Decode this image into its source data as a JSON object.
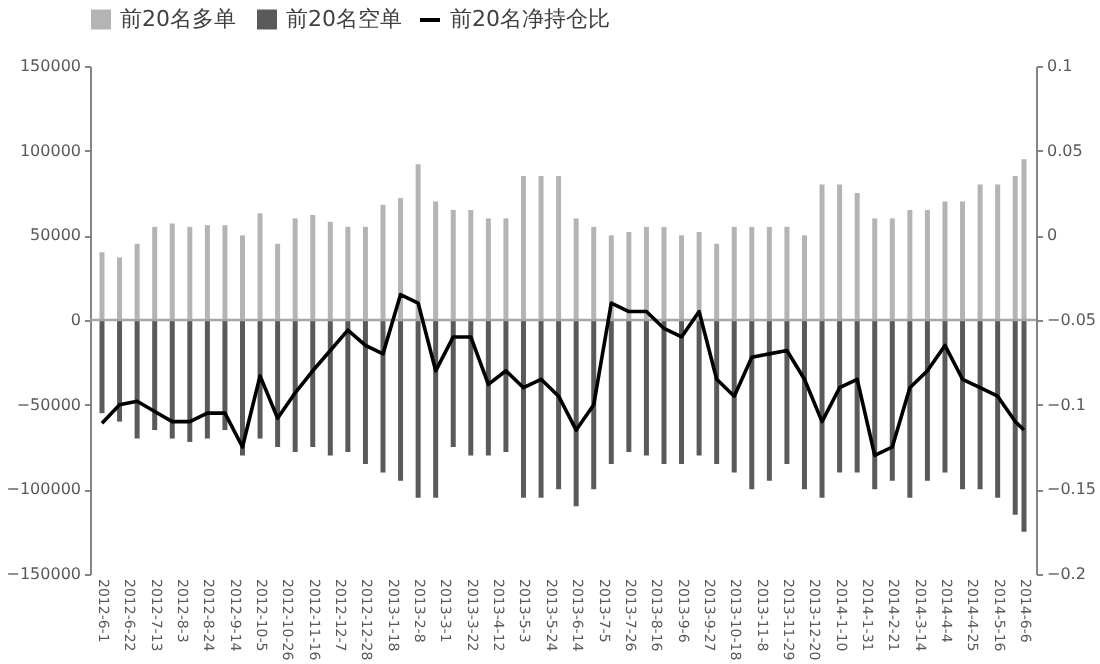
{
  "chart_data": {
    "type": "bar",
    "stacked": true,
    "legend": "top",
    "grid": false,
    "x": [
      "2012-06-01",
      "2012-06-15",
      "2012-06-29",
      "2012-07-13",
      "2012-07-27",
      "2012-08-10",
      "2012-08-24",
      "2012-09-07",
      "2012-09-21",
      "2012-10-05",
      "2012-10-19",
      "2012-11-02",
      "2012-11-16",
      "2012-11-30",
      "2012-12-14",
      "2012-12-28",
      "2013-01-11",
      "2013-01-25",
      "2013-02-08",
      "2013-02-22",
      "2013-03-08",
      "2013-03-22",
      "2013-04-05",
      "2013-04-19",
      "2013-05-03",
      "2013-05-17",
      "2013-05-31",
      "2013-06-14",
      "2013-06-28",
      "2013-07-12",
      "2013-07-26",
      "2013-08-09",
      "2013-08-23",
      "2013-09-06",
      "2013-09-20",
      "2013-10-04",
      "2013-10-18",
      "2013-11-01",
      "2013-11-15",
      "2013-11-29",
      "2013-12-13",
      "2013-12-27",
      "2014-01-10",
      "2014-01-24",
      "2014-02-07",
      "2014-02-21",
      "2014-03-07",
      "2014-03-21",
      "2014-04-04",
      "2014-04-18",
      "2014-05-02",
      "2014-05-16",
      "2014-05-30",
      "2014-06-06"
    ],
    "series": [
      {
        "name": "前20名多单",
        "color": "#b4b4b4",
        "values": [
          40000,
          37000,
          45000,
          55000,
          57000,
          55000,
          56000,
          56000,
          50000,
          63000,
          45000,
          60000,
          62000,
          58000,
          55000,
          55000,
          68000,
          72000,
          92000,
          70000,
          65000,
          65000,
          60000,
          60000,
          85000,
          85000,
          85000,
          60000,
          55000,
          50000,
          52000,
          55000,
          55000,
          50000,
          52000,
          45000,
          55000,
          55000,
          55000,
          55000,
          50000,
          80000,
          80000,
          75000,
          60000,
          60000,
          65000,
          65000,
          70000,
          70000,
          80000,
          80000,
          85000,
          95000
        ]
      },
      {
        "name": "前20名空单",
        "color": "#5a5a5a",
        "values": [
          -55000,
          -60000,
          -70000,
          -65000,
          -70000,
          -72000,
          -70000,
          -65000,
          -80000,
          -70000,
          -75000,
          -78000,
          -75000,
          -80000,
          -78000,
          -85000,
          -90000,
          -95000,
          -105000,
          -105000,
          -75000,
          -80000,
          -80000,
          -78000,
          -105000,
          -105000,
          -100000,
          -110000,
          -100000,
          -85000,
          -78000,
          -80000,
          -85000,
          -85000,
          -80000,
          -85000,
          -90000,
          -100000,
          -95000,
          -85000,
          -100000,
          -105000,
          -90000,
          -90000,
          -100000,
          -95000,
          -105000,
          -95000,
          -90000,
          -100000,
          -100000,
          -105000,
          -115000,
          -125000
        ]
      },
      {
        "name": "前20名净持仓比",
        "type": "line",
        "axis": "y2",
        "color": "#000000",
        "values": [
          -0.111,
          -0.1,
          -0.098,
          -0.104,
          -0.11,
          -0.11,
          -0.105,
          -0.105,
          -0.125,
          -0.083,
          -0.108,
          -0.093,
          -0.08,
          -0.068,
          -0.056,
          -0.065,
          -0.07,
          -0.035,
          -0.04,
          -0.08,
          -0.06,
          -0.06,
          -0.088,
          -0.08,
          -0.09,
          -0.085,
          -0.095,
          -0.115,
          -0.1,
          -0.04,
          -0.045,
          -0.045,
          -0.055,
          -0.06,
          -0.045,
          -0.085,
          -0.095,
          -0.072,
          -0.07,
          -0.068,
          -0.085,
          -0.11,
          -0.09,
          -0.085,
          -0.13,
          -0.125,
          -0.09,
          -0.08,
          -0.065,
          -0.085,
          -0.09,
          -0.095,
          -0.11,
          -0.115
        ]
      }
    ],
    "xlim": [
      "2012-06-01",
      "2014-06-06"
    ],
    "xticks": [
      {
        "value": "2012-06-01",
        "label": "2012-6-1"
      },
      {
        "value": "2012-06-22",
        "label": "2012-6-22"
      },
      {
        "value": "2012-07-13",
        "label": "2012-7-13"
      },
      {
        "value": "2012-08-03",
        "label": "2012-8-3"
      },
      {
        "value": "2012-08-24",
        "label": "2012-8-24"
      },
      {
        "value": "2012-09-14",
        "label": "2012-9-14"
      },
      {
        "value": "2012-10-05",
        "label": "2012-10-5"
      },
      {
        "value": "2012-10-26",
        "label": "2012-10-26"
      },
      {
        "value": "2012-11-16",
        "label": "2012-11-16"
      },
      {
        "value": "2012-12-07",
        "label": "2012-12-7"
      },
      {
        "value": "2012-12-28",
        "label": "2012-12-28"
      },
      {
        "value": "2013-01-18",
        "label": "2013-1-18"
      },
      {
        "value": "2013-02-08",
        "label": "2013-2-8"
      },
      {
        "value": "2013-03-01",
        "label": "2013-3-1"
      },
      {
        "value": "2013-03-22",
        "label": "2013-3-22"
      },
      {
        "value": "2013-04-12",
        "label": "2013-4-12"
      },
      {
        "value": "2013-05-03",
        "label": "2013-5-3"
      },
      {
        "value": "2013-05-24",
        "label": "2013-5-24"
      },
      {
        "value": "2013-06-14",
        "label": "2013-6-14"
      },
      {
        "value": "2013-07-05",
        "label": "2013-7-5"
      },
      {
        "value": "2013-07-26",
        "label": "2013-7-26"
      },
      {
        "value": "2013-08-16",
        "label": "2013-8-16"
      },
      {
        "value": "2013-09-06",
        "label": "2013-9-6"
      },
      {
        "value": "2013-09-27",
        "label": "2013-9-27"
      },
      {
        "value": "2013-10-18",
        "label": "2013-10-18"
      },
      {
        "value": "2013-11-08",
        "label": "2013-11-8"
      },
      {
        "value": "2013-11-29",
        "label": "2013-11-29"
      },
      {
        "value": "2013-12-20",
        "label": "2013-12-20"
      },
      {
        "value": "2014-01-10",
        "label": "2014-1-10"
      },
      {
        "value": "2014-01-31",
        "label": "2014-1-31"
      },
      {
        "value": "2014-02-21",
        "label": "2014-2-21"
      },
      {
        "value": "2014-03-14",
        "label": "2014-3-14"
      },
      {
        "value": "2014-04-04",
        "label": "2014-4-4"
      },
      {
        "value": "2014-04-25",
        "label": "2014-4-25"
      },
      {
        "value": "2014-05-16",
        "label": "2014-5-16"
      },
      {
        "value": "2014-06-06",
        "label": "2014-6-6"
      }
    ],
    "ylim": [
      -150000,
      150000
    ],
    "yticks": [
      -150000,
      -100000,
      -50000,
      0,
      50000,
      100000,
      150000
    ],
    "y2lim": [
      -0.2,
      0.1
    ],
    "y2ticks": [
      -0.2,
      -0.15,
      -0.1,
      -0.05,
      0,
      0.05,
      0.1
    ],
    "ref_lines": [
      {
        "axis": "y",
        "value": 0,
        "color": "#a6a6a6"
      }
    ]
  }
}
